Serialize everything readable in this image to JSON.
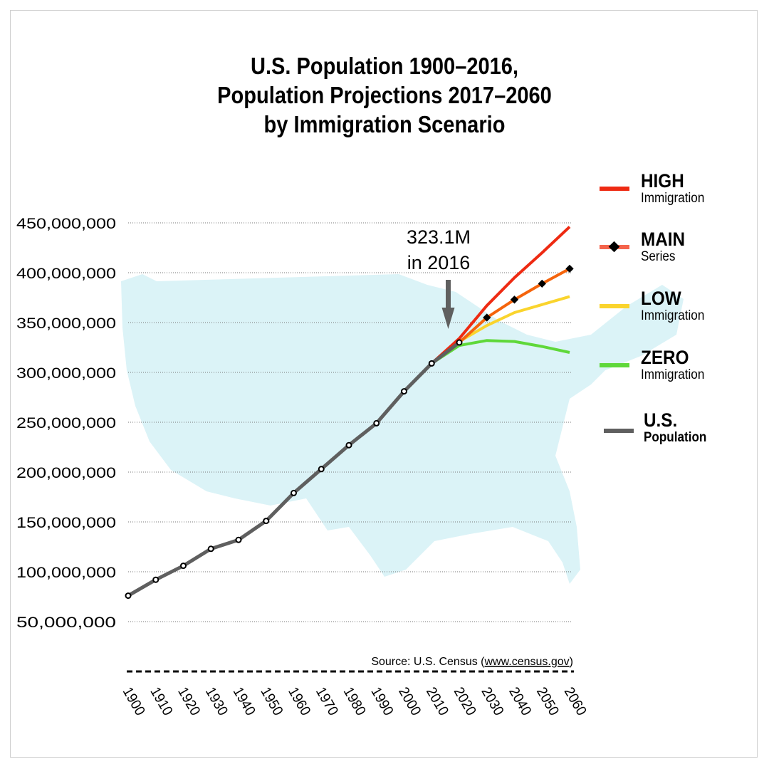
{
  "chart_data": {
    "type": "line",
    "title": "U.S. Population 1900–2016, Population Projections 2017–2060 by Immigration Scenario",
    "title_lines": [
      "U.S. Population 1900–2016,",
      "Population Projections 2017–2060",
      "by Immigration Scenario"
    ],
    "x_ticks": [
      "1900",
      "1910",
      "1920",
      "1930",
      "1940",
      "1950",
      "1960",
      "1970",
      "1980",
      "1990",
      "2000",
      "2010",
      "2020",
      "2030",
      "2040",
      "2050",
      "2060"
    ],
    "y_ticks": [
      "50,000,000",
      "100,000,000",
      "150,000,000",
      "200,000,000",
      "250,000,000",
      "300,000,000",
      "350,000,000",
      "400,000,000",
      "450,000,000"
    ],
    "y_tick_values": [
      50000000,
      100000000,
      150000000,
      200000000,
      250000000,
      300000000,
      350000000,
      400000000,
      450000000
    ],
    "ylim": [
      50000000,
      450000000
    ],
    "xlim": [
      1900,
      2060
    ],
    "grid": "horizontal dotted",
    "legend_placement": "right",
    "series": [
      {
        "name": "U.S. Population",
        "key": "us",
        "color": "#5f5f5f",
        "x": [
          1900,
          1910,
          1920,
          1930,
          1940,
          1950,
          1960,
          1970,
          1980,
          1990,
          2000,
          2010,
          2020
        ],
        "values": [
          76000000,
          92000000,
          106000000,
          123000000,
          132000000,
          151000000,
          179000000,
          203000000,
          227000000,
          249000000,
          281000000,
          309000000,
          330000000
        ]
      },
      {
        "name": "HIGH Immigration",
        "key": "high",
        "color": "#ee2a12",
        "x": [
          2010,
          2020,
          2030,
          2040,
          2050,
          2060
        ],
        "values": [
          309000000,
          334000000,
          367000000,
          395000000,
          420000000,
          446000000
        ]
      },
      {
        "name": "MAIN Series",
        "key": "main",
        "color": "#f5640c",
        "x": [
          2010,
          2020,
          2030,
          2040,
          2050,
          2060
        ],
        "values": [
          309000000,
          330000000,
          355000000,
          373000000,
          389000000,
          404000000
        ]
      },
      {
        "name": "LOW Immigration",
        "key": "low",
        "color": "#fad42d",
        "x": [
          2010,
          2020,
          2030,
          2040,
          2050,
          2060
        ],
        "values": [
          309000000,
          331000000,
          347000000,
          360000000,
          368000000,
          376000000
        ]
      },
      {
        "name": "ZERO Immigration",
        "key": "zero",
        "color": "#5fd83a",
        "x": [
          2010,
          2020,
          2030,
          2040,
          2050,
          2060
        ],
        "values": [
          309000000,
          327000000,
          332000000,
          331000000,
          326000000,
          320000000
        ]
      }
    ],
    "annotation": {
      "lines": [
        "323.1M",
        "in 2016"
      ],
      "x": 2016
    },
    "source": {
      "prefix": "Source: U.S. Census (",
      "link": "www.census.gov",
      "suffix": ")"
    },
    "legend": [
      {
        "main": "HIGH",
        "sub": "Immigration",
        "color": "#ee2a12"
      },
      {
        "main": "MAIN",
        "sub": "Series",
        "color": "#f5644c"
      },
      {
        "main": "LOW",
        "sub": "Immigration",
        "color": "#fad42d"
      },
      {
        "main": "ZERO",
        "sub": "Immigration",
        "color": "#5fd83a"
      },
      {
        "main": "U.S.",
        "sub": "Population",
        "color": "#5f5f5f"
      }
    ],
    "map_color": "#dbf3f7"
  }
}
